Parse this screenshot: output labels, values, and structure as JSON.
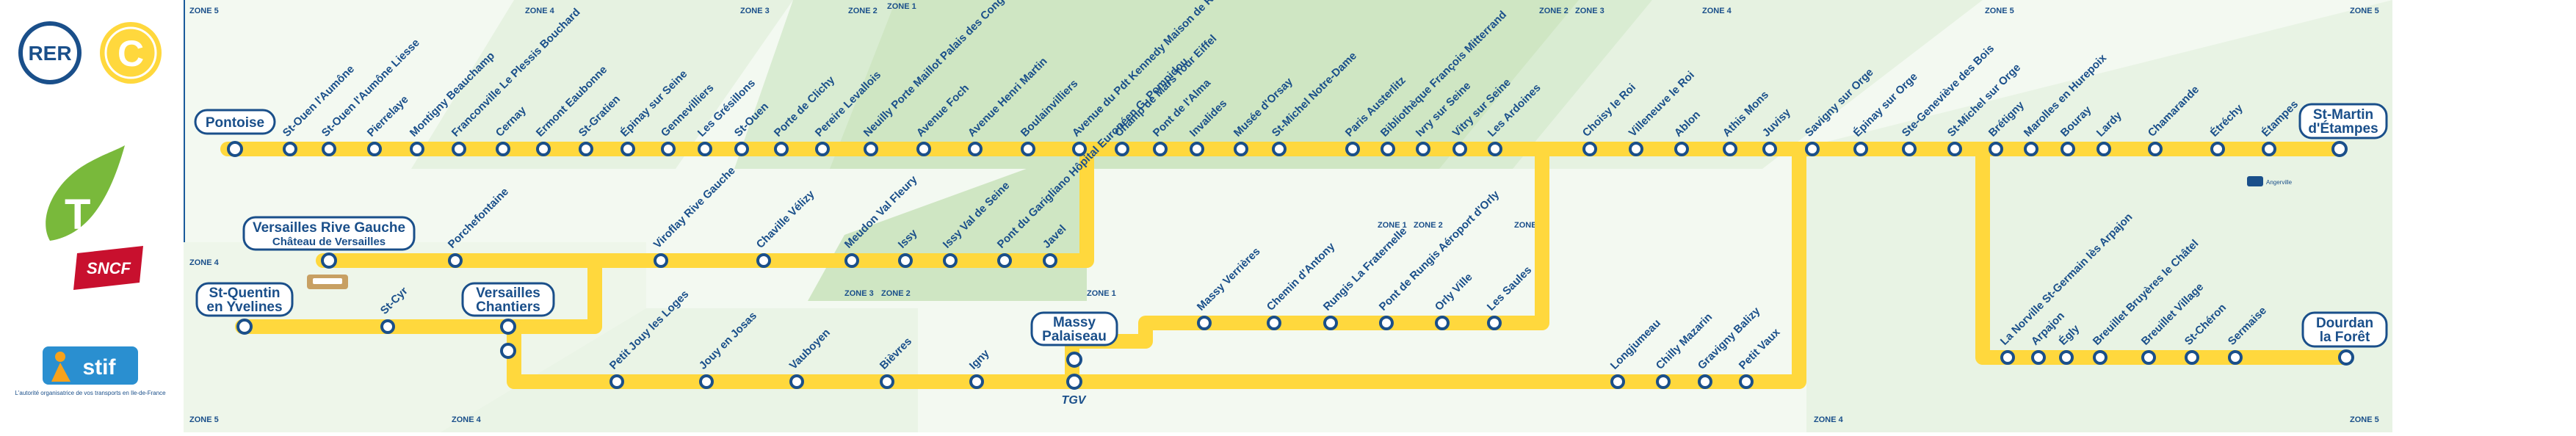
{
  "colors": {
    "line": "#ffd83d",
    "blue": "#1a4f8a",
    "zone_fill": "#e2f0dc",
    "zone_dark": "#cfe6c3",
    "rer_red": "#e63027",
    "transilien_green": "#79b93b",
    "sncf_red": "#c8102e",
    "stif_blue": "#2a8fd0",
    "stif_orange": "#f7a21b"
  },
  "logos": {
    "rer": "RER",
    "line_letter": "C",
    "sncf": "SNCF",
    "stif": "stif",
    "stif_tagline": "L'autorité organisatrice de vos transports en Ile-de-France"
  },
  "zones": {
    "z5a": "ZONE 5",
    "z4a": "ZONE 4",
    "z3a": "ZONE 3",
    "z2a": "ZONE 2",
    "z1": "ZONE 1",
    "z2b": "ZONE 2",
    "z3b": "ZONE 3",
    "z4b": "ZONE 4",
    "z5b": "ZONE 5",
    "z4c": "ZONE 4",
    "z5c": "ZONE 5",
    "z3c": "ZONE 3",
    "z2c": "ZONE 2",
    "z1b": "ZONE 1",
    "z1c": "ZONE 1",
    "z2d": "ZONE 2",
    "z3d": "ZONE 3",
    "z4d": "ZONE 4",
    "z5d": "ZONE 5",
    "z4e": "ZONE 4",
    "z5e": "ZONE 5"
  },
  "terminals": {
    "pontoise": "Pontoise",
    "versailles_rg_1": "Versailles Rive Gauche",
    "versailles_rg_2": "Château de Versailles",
    "sqy_1": "St-Quentin",
    "sqy_2": "en Yvelines",
    "vc_1": "Versailles",
    "vc_2": "Chantiers",
    "massy_1": "Massy",
    "massy_2": "Palaiseau",
    "ste_1": "St-Martin",
    "ste_2": "d'Étampes",
    "dlf_1": "Dourdan",
    "dlf_2": "la Forêt"
  },
  "stations_main": [
    "St-Ouen l'Aumône",
    "St-Ouen l'Aumône Liesse",
    "Pierrelaye",
    "Montigny Beauchamp",
    "Franconville Le Plessis Bouchard",
    "Cernay",
    "Ermont Eaubonne",
    "St-Gratien",
    "Épinay sur Seine",
    "Gennevilliers",
    "Les Grésillons",
    "St-Ouen",
    "Porte de Clichy",
    "Pereire Levallois",
    "Neuilly Porte Maillot Palais des Congrès",
    "Avenue Foch",
    "Avenue Henri Martin",
    "Boulainvilliers",
    "Avenue du Pdt Kennedy Maison de Radio France",
    "Champ de Mars Tour Eiffel",
    "Pont de l'Alma",
    "Invalides",
    "Musée d'Orsay",
    "St-Michel Notre-Dame",
    "Paris Austerlitz",
    "Bibliothèque François Mitterrand",
    "Ivry sur Seine",
    "Vitry sur Seine",
    "Les Ardoines",
    "Choisy le Roi",
    "Villeneuve le Roi",
    "Ablon",
    "Athis Mons",
    "Juvisy",
    "Savigny sur Orge",
    "Épinay sur Orge",
    "Ste-Geneviève des Bois",
    "St-Michel sur Orge",
    "Brétigny",
    "Marolles en Hurepoix",
    "Bouray",
    "Lardy",
    "Chamarande",
    "Étréchy",
    "Étampes"
  ],
  "stations_mid": [
    "Porchefontaine",
    "Viroflay Rive Gauche",
    "Chaville Vélizy",
    "Meudon Val Fleury",
    "Issy",
    "Issy Val de Seine",
    "Pont du Garigliano Hôpital Européen G. Pompidou",
    "Javel"
  ],
  "stations_sqy": [
    "St-Cyr"
  ],
  "stations_massy": [
    "Massy Verrières",
    "Chemin d'Antony",
    "Rungis La Fraternelle",
    "Pont de Rungis Aéroport d'Orly",
    "Orly Ville",
    "Les Saules"
  ],
  "stations_low": [
    "Petit Jouy les Loges",
    "Jouy en Josas",
    "Vauboyen",
    "Bièvres",
    "Igny",
    "Longjumeau",
    "Chilly Mazarin",
    "Gravigny Balizy",
    "Petit Vaux"
  ],
  "stations_dourdan": [
    "La Norville St-Germain lès Arpajon",
    "Arpajon",
    "Égly",
    "Breuillet Bruyères le Châtel",
    "Breuillet Village",
    "St-Chéron",
    "Sermaise"
  ],
  "notes": {
    "angerville": "Angerville",
    "tgv": "TGV"
  }
}
